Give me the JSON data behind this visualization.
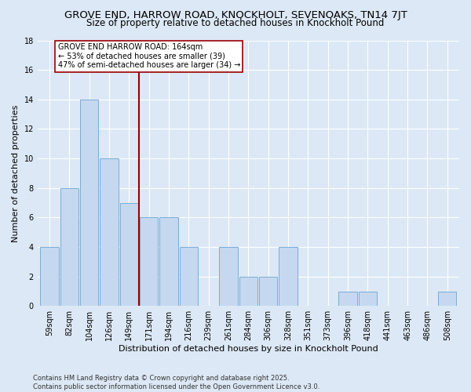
{
  "title": "GROVE END, HARROW ROAD, KNOCKHOLT, SEVENOAKS, TN14 7JT",
  "subtitle": "Size of property relative to detached houses in Knockholt Pound",
  "xlabel": "Distribution of detached houses by size in Knockholt Pound",
  "ylabel": "Number of detached properties",
  "categories": [
    "59sqm",
    "82sqm",
    "104sqm",
    "126sqm",
    "149sqm",
    "171sqm",
    "194sqm",
    "216sqm",
    "239sqm",
    "261sqm",
    "284sqm",
    "306sqm",
    "328sqm",
    "351sqm",
    "373sqm",
    "396sqm",
    "418sqm",
    "441sqm",
    "463sqm",
    "486sqm",
    "508sqm"
  ],
  "values": [
    4,
    8,
    14,
    10,
    7,
    6,
    6,
    4,
    0,
    4,
    2,
    2,
    4,
    0,
    0,
    1,
    1,
    0,
    0,
    0,
    1
  ],
  "bar_color": "#c5d8f0",
  "bar_edge_color": "#7aadd4",
  "vline_x": 5.0,
  "vline_color": "#990000",
  "annotation_text": "GROVE END HARROW ROAD: 164sqm\n← 53% of detached houses are smaller (39)\n47% of semi-detached houses are larger (34) →",
  "annotation_box_facecolor": "#ffffff",
  "annotation_box_edgecolor": "#990000",
  "ylim": [
    0,
    18
  ],
  "yticks": [
    0,
    2,
    4,
    6,
    8,
    10,
    12,
    14,
    16,
    18
  ],
  "background_color": "#dce8f5",
  "grid_color": "#ffffff",
  "footer_text": "Contains HM Land Registry data © Crown copyright and database right 2025.\nContains public sector information licensed under the Open Government Licence v3.0.",
  "title_fontsize": 9.5,
  "subtitle_fontsize": 8.5,
  "axis_label_fontsize": 8,
  "tick_fontsize": 7,
  "annotation_fontsize": 7,
  "footer_fontsize": 6
}
